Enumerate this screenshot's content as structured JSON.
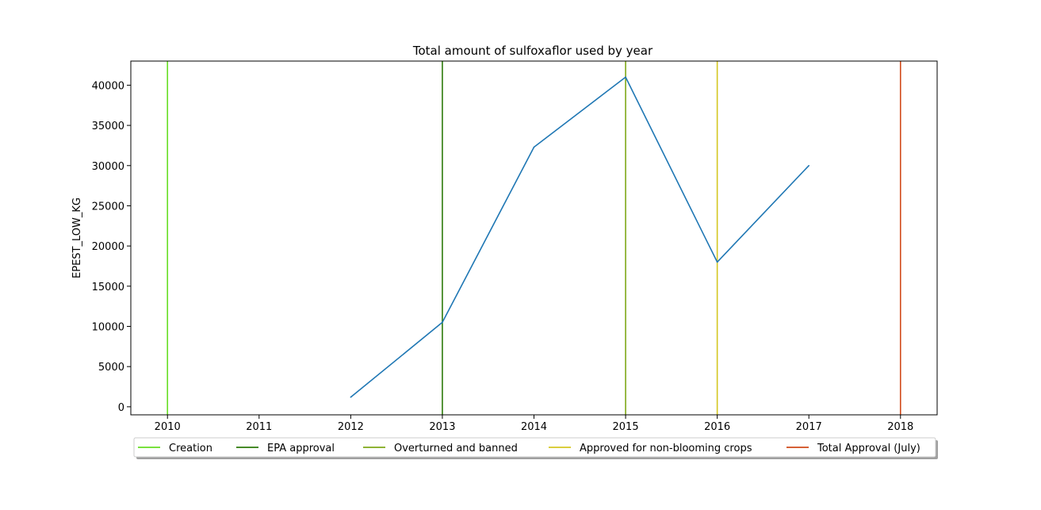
{
  "chart_data": {
    "type": "line",
    "title": "Total amount of sulfoxaflor used by year",
    "xlabel": "",
    "ylabel": "EPEST_LOW_KG",
    "xlim": [
      2009.6,
      2018.4
    ],
    "ylim": [
      -1000,
      43000
    ],
    "xticks": [
      "2010",
      "2011",
      "2012",
      "2013",
      "2014",
      "2015",
      "2016",
      "2017",
      "2018"
    ],
    "yticks": [
      "0",
      "5000",
      "10000",
      "15000",
      "20000",
      "25000",
      "30000",
      "35000",
      "40000"
    ],
    "series": [
      {
        "color": "#1f77b4",
        "x": [
          2012,
          2013,
          2014,
          2015,
          2016,
          2017
        ],
        "values": [
          1200,
          10500,
          32300,
          41000,
          18000,
          30000
        ]
      }
    ],
    "vlines": [
      {
        "x": 2010,
        "name": "Creation",
        "color": "#66dd22"
      },
      {
        "x": 2013,
        "name": "EPA approval",
        "color": "#2d7a0a"
      },
      {
        "x": 2015,
        "name": "Overturned and banned",
        "color": "#7fa818"
      },
      {
        "x": 2016,
        "name": "Approved for non-blooming crops",
        "color": "#d4c722"
      },
      {
        "x": 2018,
        "name": "Total Approval (July)",
        "color": "#d14a1a"
      }
    ],
    "grid": false,
    "legend_position": "bottom"
  }
}
